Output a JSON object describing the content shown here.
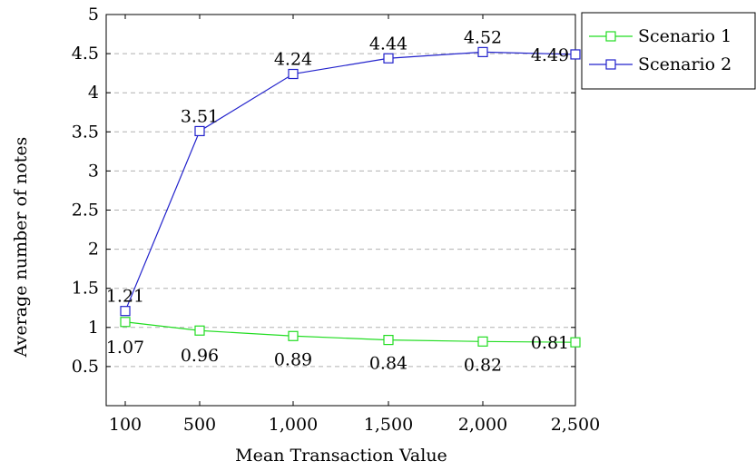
{
  "chart_data": {
    "type": "line",
    "x": [
      100,
      500,
      1000,
      1500,
      2000,
      2500
    ],
    "x_tick_labels": [
      "100",
      "500",
      "1,000",
      "1,500",
      "2,000",
      "2,500"
    ],
    "y_ticks": [
      0.5,
      1,
      1.5,
      2,
      2.5,
      3,
      3.5,
      4,
      4.5,
      5
    ],
    "y_tick_labels": [
      "0.5",
      "1",
      "1.5",
      "2",
      "2.5",
      "3",
      "3.5",
      "4",
      "4.5",
      "5"
    ],
    "xlabel": "Mean Transaction Value",
    "ylabel": "Average number of notes",
    "xlim": [
      100,
      2500
    ],
    "ylim": [
      0,
      5
    ],
    "grid": "horizontal dashed",
    "legend_position": "outside top-right",
    "series": [
      {
        "name": "Scenario 1",
        "color": "#22dd22",
        "marker": "square",
        "values": [
          1.07,
          0.96,
          0.89,
          0.84,
          0.82,
          0.81
        ],
        "labels": [
          "1.07",
          "0.96",
          "0.89",
          "0.84",
          "0.82",
          "0.81"
        ]
      },
      {
        "name": "Scenario 2",
        "color": "#2222cc",
        "marker": "square",
        "values": [
          1.21,
          3.51,
          4.24,
          4.44,
          4.52,
          4.49
        ],
        "labels": [
          "1.21",
          "3.51",
          "4.24",
          "4.44",
          "4.52",
          "4.49"
        ]
      }
    ]
  }
}
